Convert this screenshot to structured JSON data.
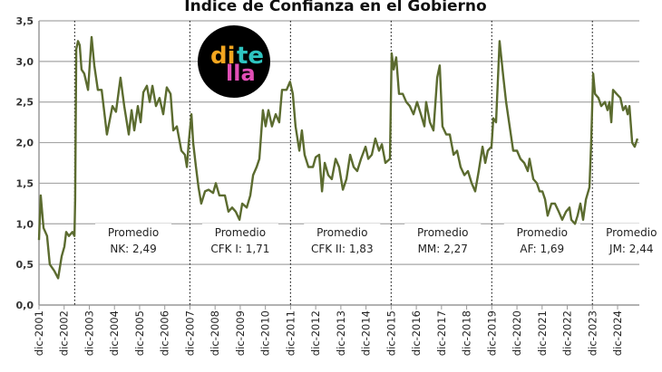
{
  "chart_data": {
    "type": "line",
    "title": "Índice de Confianza en el Gobierno",
    "xlabel": "",
    "ylabel": "",
    "ylim": [
      0,
      3.5
    ],
    "grid": true,
    "yticks": [
      "0,0",
      "0,5",
      "1,0",
      "1,5",
      "2,0",
      "2,5",
      "3,0",
      "3,5"
    ],
    "xticks": [
      "dic-2001",
      "dic-2002",
      "dic-2003",
      "dic-2004",
      "dic-2005",
      "dic-2006",
      "dic-2007",
      "dic-2008",
      "dic-2009",
      "dic-2010",
      "dic-2011",
      "dic-2012",
      "dic-2013",
      "dic-2014",
      "dic-2015",
      "dic-2016",
      "dic-2017",
      "dic-2018",
      "dic-2019",
      "dic-2020",
      "dic-2021",
      "dic-2022",
      "dic-2023",
      "dic-2024"
    ],
    "x_unit": "years since dic-2001",
    "xlim": [
      0,
      23.8
    ],
    "series": [
      {
        "name": "Índice de Confianza en el Gobierno",
        "color": "#5b6b2f",
        "x": [
          0,
          0.07,
          0.18,
          0.32,
          0.43,
          0.61,
          0.76,
          0.9,
          1.01,
          1.08,
          1.19,
          1.33,
          1.41,
          1.44,
          1.48,
          1.55,
          1.62,
          1.69,
          1.8,
          1.95,
          2.09,
          2.2,
          2.34,
          2.49,
          2.7,
          2.92,
          3.06,
          3.24,
          3.39,
          3.57,
          3.68,
          3.79,
          3.93,
          4.04,
          4.15,
          4.29,
          4.4,
          4.51,
          4.65,
          4.79,
          4.94,
          5.08,
          5.23,
          5.34,
          5.48,
          5.66,
          5.8,
          5.88,
          5.95,
          6.06,
          6.13,
          6.24,
          6.34,
          6.45,
          6.6,
          6.74,
          6.92,
          7.03,
          7.17,
          7.39,
          7.53,
          7.68,
          7.82,
          7.97,
          8.08,
          8.26,
          8.4,
          8.51,
          8.65,
          8.76,
          8.9,
          9.01,
          9.12,
          9.26,
          9.41,
          9.55,
          9.66,
          9.84,
          9.98,
          10.09,
          10.2,
          10.35,
          10.45,
          10.56,
          10.71,
          10.89,
          11,
          11.14,
          11.25,
          11.36,
          11.5,
          11.64,
          11.79,
          11.93,
          12.08,
          12.22,
          12.37,
          12.51,
          12.65,
          12.8,
          12.98,
          13.09,
          13.23,
          13.37,
          13.52,
          13.63,
          13.77,
          13.95,
          14.02,
          14.1,
          14.2,
          14.31,
          14.46,
          14.6,
          14.74,
          14.89,
          15.03,
          15.18,
          15.32,
          15.39,
          15.54,
          15.68,
          15.83,
          15.93,
          16.04,
          16.19,
          16.33,
          16.48,
          16.62,
          16.76,
          16.91,
          17.05,
          17.2,
          17.34,
          17.48,
          17.63,
          17.74,
          17.84,
          17.99,
          18.06,
          18.17,
          18.31,
          18.46,
          18.57,
          18.71,
          18.85,
          19,
          19.14,
          19.29,
          19.43,
          19.5,
          19.65,
          19.79,
          19.9,
          20.01,
          20.12,
          20.22,
          20.37,
          20.51,
          20.66,
          20.8,
          20.95,
          21.09,
          21.16,
          21.31,
          21.41,
          21.52,
          21.63,
          21.74,
          21.88,
          21.95,
          22.03,
          22.1,
          22.24,
          22.35,
          22.5,
          22.6,
          22.68,
          22.75,
          22.82,
          22.96,
          23.11,
          23.22,
          23.32,
          23.4,
          23.47,
          23.58,
          23.68,
          23.79
        ],
        "y": [
          0.8,
          1.35,
          0.95,
          0.85,
          0.5,
          0.42,
          0.33,
          0.6,
          0.72,
          0.9,
          0.85,
          0.9,
          0.85,
          1.3,
          3.15,
          3.25,
          3.2,
          2.9,
          2.85,
          2.65,
          3.3,
          2.95,
          2.65,
          2.65,
          2.1,
          2.45,
          2.38,
          2.8,
          2.45,
          2.1,
          2.4,
          2.15,
          2.45,
          2.25,
          2.62,
          2.7,
          2.5,
          2.7,
          2.45,
          2.55,
          2.35,
          2.68,
          2.6,
          2.15,
          2.2,
          1.9,
          1.85,
          1.7,
          2.0,
          2.35,
          2.0,
          1.7,
          1.45,
          1.25,
          1.4,
          1.42,
          1.38,
          1.5,
          1.35,
          1.35,
          1.15,
          1.2,
          1.15,
          1.05,
          1.25,
          1.2,
          1.35,
          1.6,
          1.7,
          1.8,
          2.4,
          2.2,
          2.4,
          2.2,
          2.35,
          2.25,
          2.65,
          2.65,
          2.75,
          2.6,
          2.2,
          1.9,
          2.15,
          1.85,
          1.7,
          1.7,
          1.82,
          1.85,
          1.4,
          1.75,
          1.6,
          1.55,
          1.8,
          1.7,
          1.42,
          1.55,
          1.85,
          1.7,
          1.65,
          1.8,
          1.95,
          1.8,
          1.85,
          2.05,
          1.9,
          1.98,
          1.75,
          1.8,
          3.1,
          2.9,
          3.05,
          2.6,
          2.6,
          2.5,
          2.45,
          2.35,
          2.5,
          2.35,
          2.2,
          2.5,
          2.25,
          2.15,
          2.8,
          2.95,
          2.2,
          2.1,
          2.1,
          1.85,
          1.9,
          1.7,
          1.6,
          1.65,
          1.5,
          1.4,
          1.65,
          1.95,
          1.75,
          1.9,
          1.95,
          2.3,
          2.25,
          3.25,
          2.8,
          2.5,
          2.2,
          1.9,
          1.9,
          1.8,
          1.75,
          1.65,
          1.8,
          1.55,
          1.5,
          1.4,
          1.4,
          1.3,
          1.1,
          1.25,
          1.25,
          1.15,
          1.05,
          1.15,
          1.2,
          1.05,
          1.0,
          1.1,
          1.25,
          1.05,
          1.3,
          1.45,
          2.0,
          2.85,
          2.6,
          2.55,
          2.45,
          2.5,
          2.4,
          2.5,
          2.25,
          2.65,
          2.6,
          2.55,
          2.4,
          2.45,
          2.35,
          2.45,
          2.0,
          1.95,
          2.05
        ]
      }
    ],
    "period_lines": [
      1.42,
      6.0,
      10.0,
      14.0,
      18.0,
      22.0
    ],
    "annotations": [
      {
        "x": 3.75,
        "line1": "Promedio",
        "line2": "NK: 2,49"
      },
      {
        "x": 8.0,
        "line1": "Promedio",
        "line2": "CFK I: 1,71"
      },
      {
        "x": 12.05,
        "line1": "Promedio",
        "line2": "CFK II: 1,83"
      },
      {
        "x": 16.05,
        "line1": "Promedio",
        "line2": "MM: 2,27"
      },
      {
        "x": 20.0,
        "line1": "Promedio",
        "line2": "AF: 1,69"
      },
      {
        "x": 23.55,
        "line1": "Promedio",
        "line2": "JM: 2,44"
      }
    ],
    "logo": {
      "part1": "di",
      "part2": "te",
      "part3": "lla",
      "colors": [
        "#f2a51f",
        "#2ec4c0",
        "#e24fb6"
      ]
    }
  }
}
